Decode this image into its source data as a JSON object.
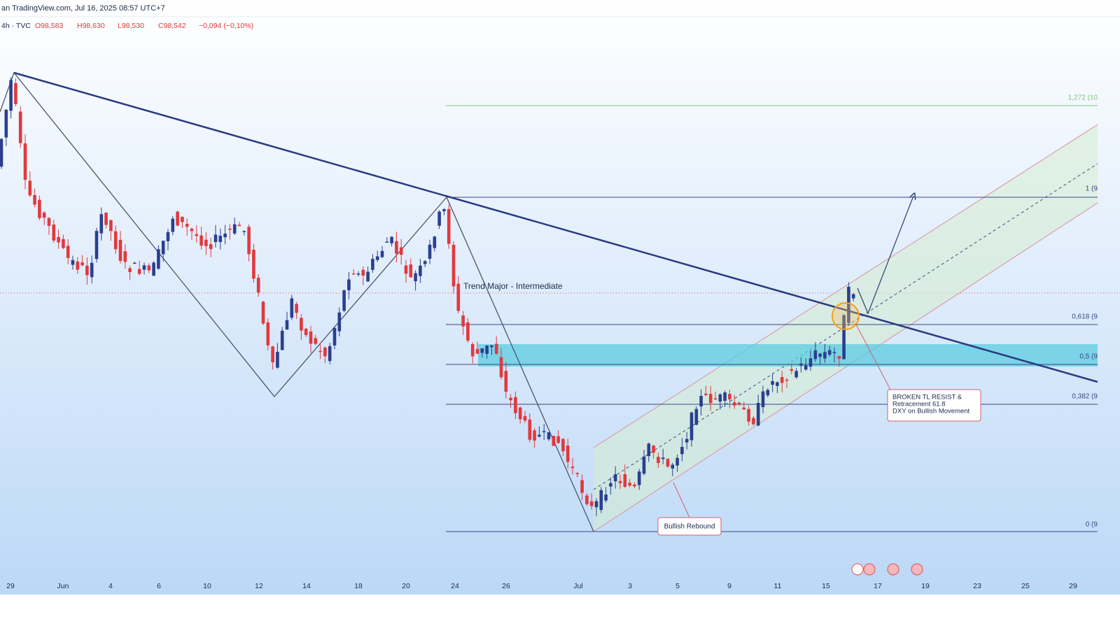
{
  "header": {
    "source": "an TradingView.com, Jul 16, 2025 08:57 UTC+7",
    "symbol": "4h · TVC",
    "ohlc": [
      "O98,583",
      "H98,630",
      "L98,530",
      "C98,542",
      "−0,094 (−0,10%)"
    ]
  },
  "x_axis": {
    "labels": [
      "29",
      "Jun",
      "4",
      "6",
      "10",
      "12",
      "14",
      "18",
      "20",
      "24",
      "26",
      "Jul",
      "3",
      "5",
      "9",
      "11",
      "15",
      "17",
      "19",
      "23",
      "25",
      "29"
    ]
  },
  "fib_levels": [
    "1,272 (10",
    "1 (9",
    "0,618 (9",
    "0,5 (9",
    "0,382 (9",
    "0 (9"
  ],
  "annotations": {
    "trend": "Trend Major - Intermediate",
    "rebound": "Bullish Rebound",
    "breakout": [
      "BROKEN TL RESIST &",
      "Retracement 61.8",
      "DXY on Bullish Movement"
    ]
  }
}
